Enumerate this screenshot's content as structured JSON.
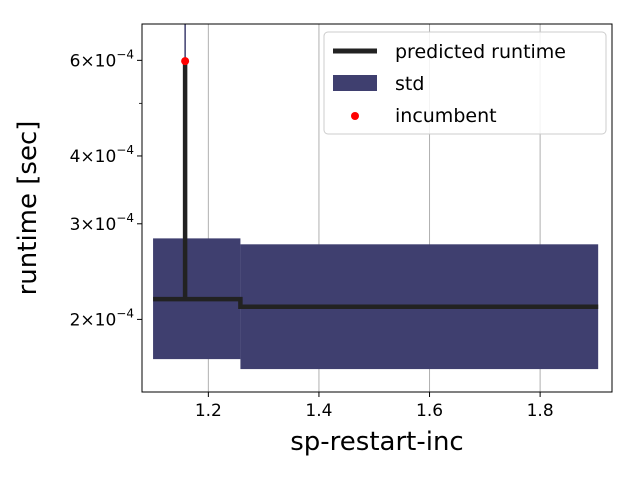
{
  "chart_data": {
    "type": "line",
    "xlabel": "sp-restart-inc",
    "ylabel": "runtime [sec]",
    "xlim": [
      1.08,
      1.93
    ],
    "ylim": [
      0.000147,
      0.0007
    ],
    "y_scale": "log",
    "grid": "x-only",
    "legend_position": "top-right",
    "x_ticks": [
      1.2,
      1.4,
      1.6,
      1.8
    ],
    "x_tick_labels": [
      "1.2",
      "1.4",
      "1.6",
      "1.8"
    ],
    "y_ticks": [
      0.0002,
      0.0003,
      0.0004,
      0.0006
    ],
    "y_tick_labels": [
      {
        "mantissa": "2",
        "exponent": "−4"
      },
      {
        "mantissa": "3",
        "exponent": "−4"
      },
      {
        "mantissa": "4",
        "exponent": "−4"
      },
      {
        "mantissa": "6",
        "exponent": "−4"
      }
    ],
    "legend": [
      {
        "name": "predicted runtime",
        "kind": "line",
        "color": "#222222"
      },
      {
        "name": "std",
        "kind": "patch",
        "color": "#3f3f6f"
      },
      {
        "name": "incumbent",
        "kind": "marker",
        "color": "#ff0000"
      }
    ],
    "series": [
      {
        "name": "predicted runtime",
        "color": "#222222",
        "x": [
          1.1,
          1.158,
          1.158,
          1.158,
          1.258,
          1.258,
          1.905
        ],
        "y": [
          0.000218,
          0.000218,
          0.000598,
          0.000218,
          0.000218,
          0.000211,
          0.000211
        ]
      }
    ],
    "std_band": {
      "name": "std",
      "color": "#3f3f6f",
      "segments": [
        {
          "x": [
            1.1,
            1.258
          ],
          "lower": 0.000169,
          "upper": 0.000282
        },
        {
          "x": [
            1.258,
            1.905
          ],
          "lower": 0.000162,
          "upper": 0.000275
        }
      ],
      "spike": {
        "x": 1.158,
        "lower": 0.000218,
        "upper": 0.0007
      }
    },
    "incumbent": {
      "name": "incumbent",
      "color": "#ff0000",
      "x": 1.158,
      "y": 0.000598
    }
  }
}
